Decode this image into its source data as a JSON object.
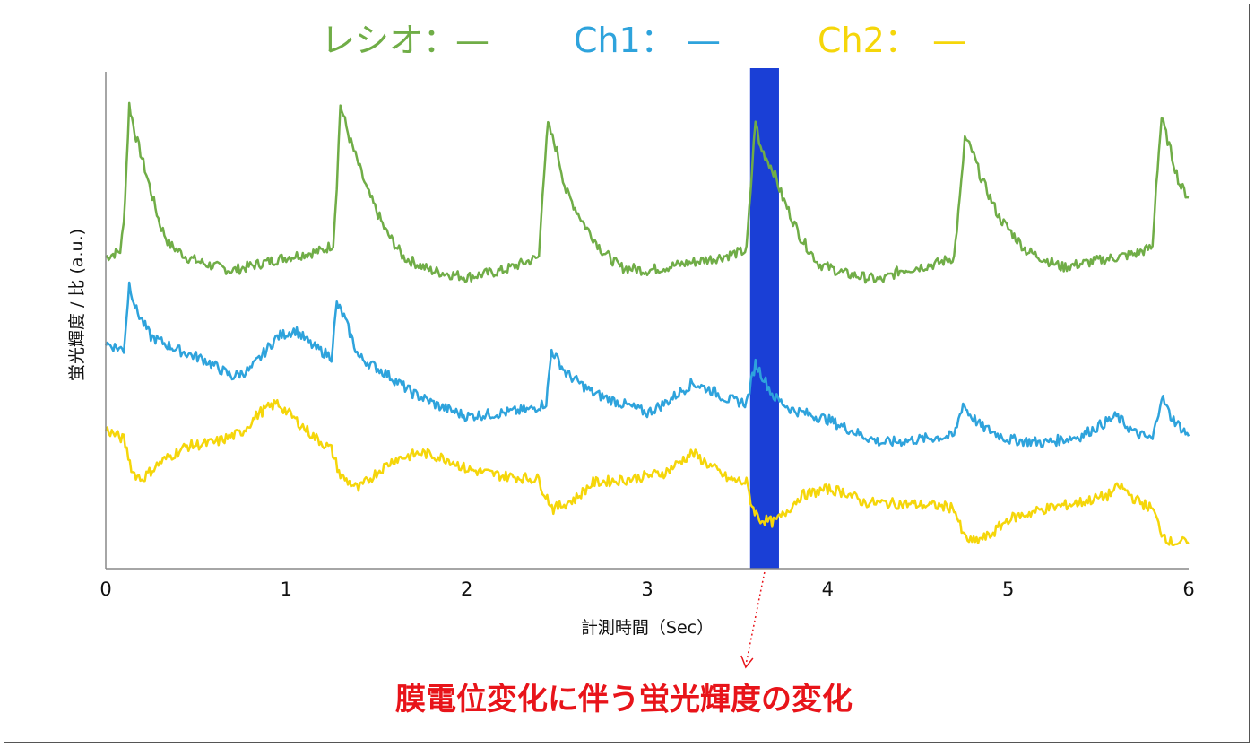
{
  "chart_data": {
    "type": "line",
    "xlabel": "計測時間（Sec）",
    "ylabel": "蛍光輝度 / 比 (a.u.)",
    "xlim": [
      0,
      6
    ],
    "xticks": [
      "0",
      "1",
      "2",
      "3",
      "4",
      "5",
      "6"
    ],
    "grid": false,
    "legend_placement": "top",
    "legend": [
      {
        "label": "レシオ：",
        "swatch": "—",
        "color": "#70ad47"
      },
      {
        "label": "Ch1：",
        "swatch": "—",
        "color": "#2ea3dc"
      },
      {
        "label": "Ch2：",
        "swatch": "—",
        "color": "#f5d60a"
      }
    ],
    "highlight": {
      "x_start": 3.57,
      "x_end": 3.73,
      "color": "#1a3fd6"
    },
    "annotation": {
      "text": "膜電位変化に伴う蛍光輝度の変化",
      "color": "#e8141a",
      "points_to_x": 3.65
    },
    "series": [
      {
        "name": "レシオ",
        "color": "#70ad47",
        "x": [
          0,
          0.08,
          0.1,
          0.13,
          0.16,
          0.2,
          0.25,
          0.3,
          0.35,
          0.45,
          0.55,
          0.7,
          0.85,
          1.0,
          1.1,
          1.2,
          1.26,
          1.28,
          1.3,
          1.35,
          1.45,
          1.55,
          1.65,
          1.8,
          2.0,
          2.2,
          2.3,
          2.4,
          2.42,
          2.45,
          2.5,
          2.55,
          2.65,
          2.75,
          2.85,
          3.0,
          3.2,
          3.4,
          3.55,
          3.58,
          3.6,
          3.62,
          3.7,
          3.75,
          3.85,
          3.95,
          4.1,
          4.3,
          4.4,
          4.5,
          4.6,
          4.7,
          4.74,
          4.76,
          4.8,
          4.85,
          4.95,
          5.1,
          5.3,
          5.5,
          5.7,
          5.8,
          5.82,
          5.85,
          5.9,
          5.95,
          6.0
        ],
        "y": [
          8.5,
          8.6,
          9.0,
          10.8,
          10.4,
          10.0,
          9.5,
          9.0,
          8.7,
          8.5,
          8.4,
          8.3,
          8.4,
          8.5,
          8.55,
          8.6,
          8.7,
          9.6,
          10.8,
          10.3,
          9.5,
          8.9,
          8.5,
          8.3,
          8.2,
          8.3,
          8.4,
          8.5,
          9.5,
          10.5,
          10.1,
          9.5,
          9.0,
          8.6,
          8.35,
          8.3,
          8.4,
          8.5,
          8.6,
          9.8,
          10.6,
          10.2,
          9.8,
          9.4,
          8.8,
          8.4,
          8.25,
          8.15,
          8.3,
          8.35,
          8.4,
          8.5,
          9.6,
          10.3,
          10.1,
          9.7,
          9.1,
          8.6,
          8.35,
          8.45,
          8.55,
          8.65,
          9.6,
          10.6,
          10.1,
          9.6,
          9.4
        ]
      },
      {
        "name": "Ch1",
        "color": "#2ea3dc",
        "x": [
          0,
          0.1,
          0.13,
          0.17,
          0.25,
          0.4,
          0.55,
          0.7,
          0.8,
          0.95,
          1.05,
          1.15,
          1.25,
          1.28,
          1.32,
          1.4,
          1.55,
          1.7,
          1.85,
          2.0,
          2.2,
          2.35,
          2.44,
          2.47,
          2.55,
          2.7,
          2.9,
          3.0,
          3.1,
          3.25,
          3.35,
          3.45,
          3.55,
          3.6,
          3.63,
          3.7,
          3.8,
          4.0,
          4.2,
          4.3,
          4.4,
          4.5,
          4.6,
          4.7,
          4.75,
          4.78,
          4.85,
          5.0,
          5.2,
          5.4,
          5.6,
          5.7,
          5.8,
          5.85,
          5.9,
          6.0
        ],
        "y": [
          7.2,
          7.1,
          8.1,
          7.7,
          7.3,
          7.1,
          6.95,
          6.7,
          6.8,
          7.3,
          7.4,
          7.15,
          7.0,
          7.8,
          7.6,
          7.0,
          6.75,
          6.45,
          6.25,
          6.1,
          6.15,
          6.2,
          6.3,
          7.1,
          6.75,
          6.45,
          6.25,
          6.15,
          6.3,
          6.6,
          6.5,
          6.35,
          6.3,
          6.9,
          6.75,
          6.4,
          6.2,
          6.05,
          5.8,
          5.7,
          5.72,
          5.75,
          5.78,
          5.8,
          6.3,
          6.15,
          5.95,
          5.75,
          5.7,
          5.8,
          6.1,
          5.85,
          5.75,
          6.4,
          6.1,
          5.8
        ]
      },
      {
        "name": "Ch2",
        "color": "#f5d60a",
        "x": [
          0,
          0.1,
          0.15,
          0.2,
          0.3,
          0.45,
          0.6,
          0.75,
          0.85,
          0.95,
          1.05,
          1.15,
          1.25,
          1.3,
          1.4,
          1.5,
          1.6,
          1.75,
          1.9,
          2.0,
          2.2,
          2.4,
          2.42,
          2.48,
          2.6,
          2.7,
          2.9,
          3.1,
          3.25,
          3.35,
          3.45,
          3.55,
          3.58,
          3.62,
          3.7,
          3.75,
          3.85,
          4.0,
          4.1,
          4.2,
          4.4,
          4.6,
          4.7,
          4.75,
          4.8,
          4.9,
          5.0,
          5.2,
          5.4,
          5.55,
          5.62,
          5.7,
          5.8,
          5.85,
          5.9,
          6.0
        ],
        "y": [
          5.9,
          5.75,
          5.25,
          5.15,
          5.4,
          5.65,
          5.7,
          5.85,
          6.15,
          6.3,
          6.05,
          5.8,
          5.6,
          5.2,
          5.0,
          5.25,
          5.45,
          5.55,
          5.45,
          5.3,
          5.2,
          5.15,
          5.0,
          4.7,
          4.85,
          5.1,
          5.15,
          5.25,
          5.55,
          5.35,
          5.15,
          5.1,
          4.75,
          4.55,
          4.5,
          4.6,
          4.9,
          5.0,
          4.95,
          4.8,
          4.78,
          4.75,
          4.72,
          4.3,
          4.2,
          4.3,
          4.55,
          4.7,
          4.8,
          4.9,
          5.05,
          4.85,
          4.7,
          4.35,
          4.2,
          4.2
        ]
      }
    ]
  }
}
